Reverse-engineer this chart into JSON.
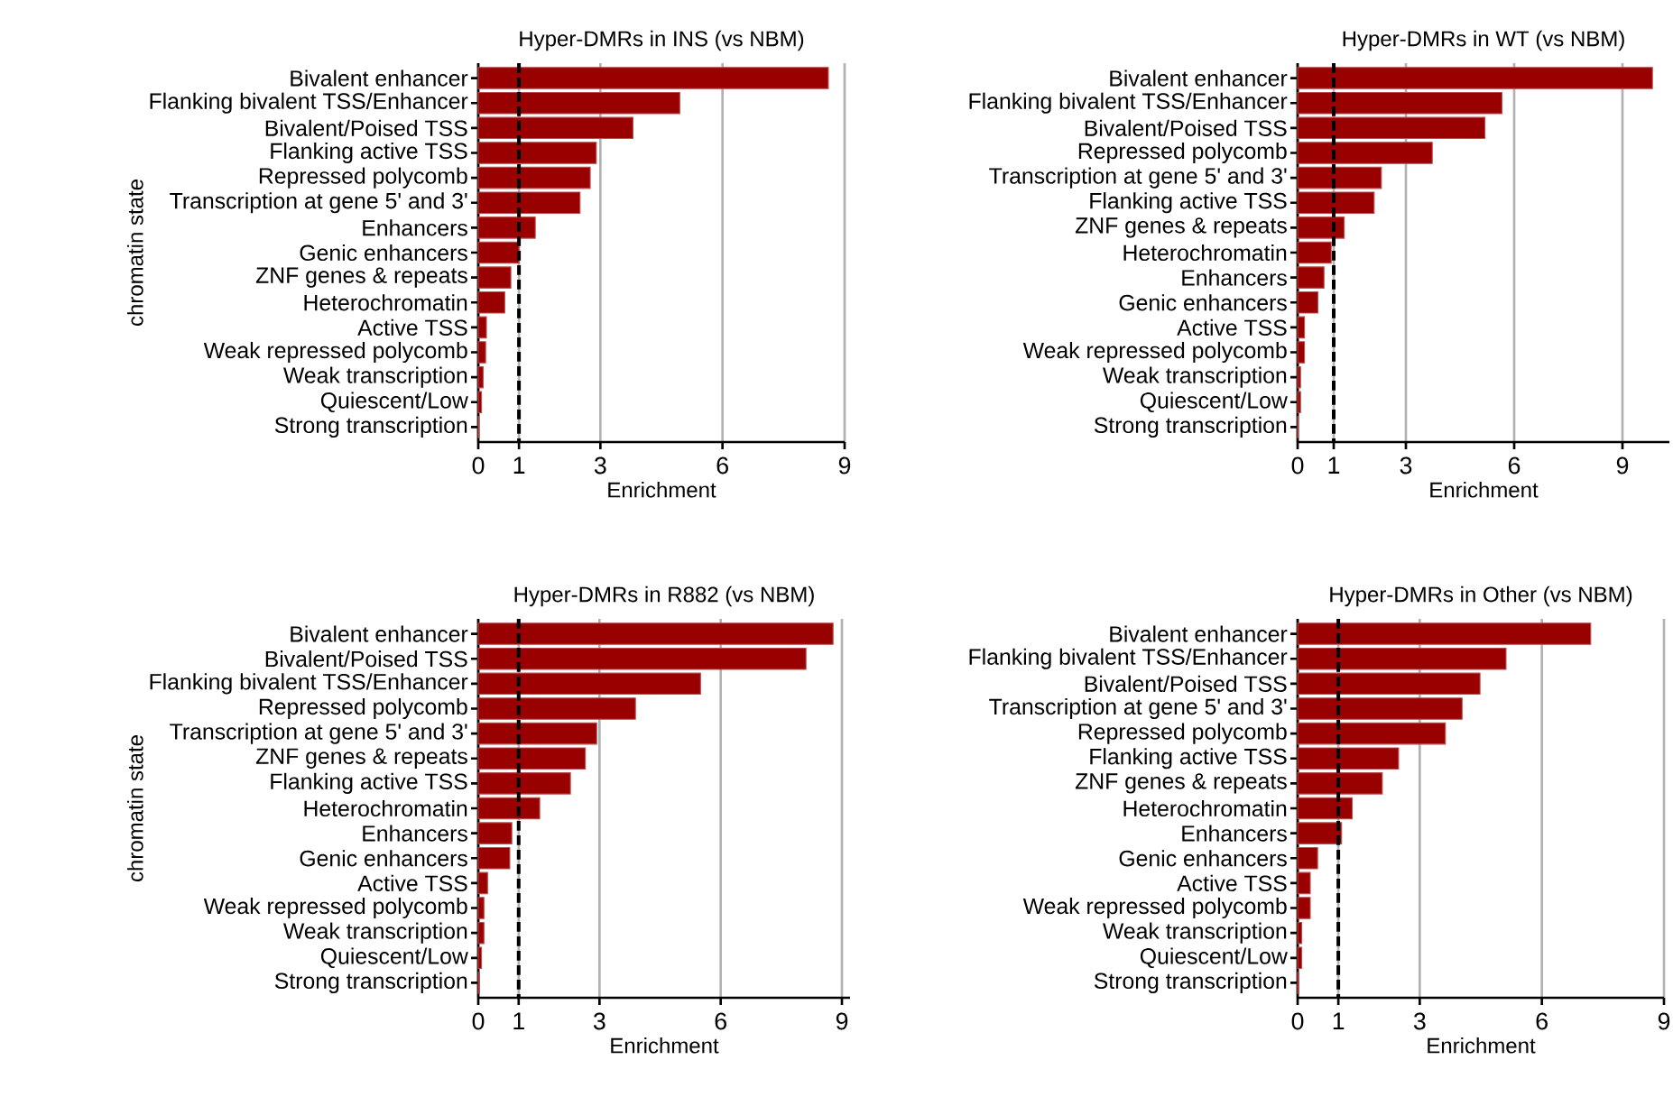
{
  "chart_data": [
    {
      "type": "bar",
      "orientation": "horizontal",
      "title": "Hyper-DMRs in INS (vs NBM)",
      "xlabel": "Enrichment",
      "ylabel": "chromatin state",
      "categories": [
        "Bivalent enhancer",
        "Flanking bivalent TSS/Enhancer",
        "Bivalent/Poised TSS",
        "Flanking active TSS",
        "Repressed polycomb",
        "Transcription at gene 5' and 3'",
        "Enhancers",
        "Genic enhancers",
        "ZNF genes & repeats",
        "Heterochromatin",
        "Active TSS",
        "Weak repressed polycomb",
        "Weak transcription",
        "Quiescent/Low",
        "Strong transcription"
      ],
      "values": [
        8.6,
        4.95,
        3.8,
        2.9,
        2.75,
        2.5,
        1.4,
        1.0,
        0.8,
        0.65,
        0.2,
        0.18,
        0.12,
        0.08,
        0.02
      ],
      "color": "#990000",
      "xlim": [
        0,
        9
      ],
      "xticks": [
        0,
        1,
        3,
        6,
        9
      ],
      "grid": "x",
      "ref_lines": [
        {
          "axis": "x",
          "value": 1,
          "color": "#000000",
          "line_style": "dashed"
        }
      ]
    },
    {
      "type": "bar",
      "orientation": "horizontal",
      "title": "Hyper-DMRs in WT (vs NBM)",
      "xlabel": "Enrichment",
      "categories": [
        "Bivalent enhancer",
        "Flanking bivalent TSS/Enhancer",
        "Bivalent/Poised TSS",
        "Repressed polycomb",
        "Transcription at gene 5' and 3'",
        "Flanking active TSS",
        "ZNF genes & repeats",
        "Heterochromatin",
        "Enhancers",
        "Genic enhancers",
        "Active TSS",
        "Weak repressed polycomb",
        "Weak transcription",
        "Quiescent/Low",
        "Strong transcription"
      ],
      "values": [
        9.83,
        5.66,
        5.19,
        3.73,
        2.32,
        2.12,
        1.29,
        0.93,
        0.73,
        0.56,
        0.19,
        0.19,
        0.08,
        0.08,
        0.02
      ],
      "color": "#990000",
      "xlim": [
        0,
        10.3
      ],
      "xticks": [
        0,
        1,
        3,
        6,
        9
      ],
      "grid": "x",
      "ref_lines": [
        {
          "axis": "x",
          "value": 1,
          "color": "#000000",
          "line_style": "dashed"
        }
      ]
    },
    {
      "type": "bar",
      "orientation": "horizontal",
      "title": "Hyper-DMRs in R882 (vs NBM)",
      "xlabel": "Enrichment",
      "ylabel": "chromatin state",
      "categories": [
        "Bivalent enhancer",
        "Bivalent/Poised TSS",
        "Flanking bivalent TSS/Enhancer",
        "Repressed polycomb",
        "Transcription at gene 5' and 3'",
        "ZNF genes & repeats",
        "Flanking active TSS",
        "Heterochromatin",
        "Enhancers",
        "Genic enhancers",
        "Active TSS",
        "Weak repressed polycomb",
        "Weak transcription",
        "Quiescent/Low",
        "Strong transcription"
      ],
      "values": [
        8.78,
        8.11,
        5.5,
        3.89,
        2.93,
        2.65,
        2.28,
        1.52,
        0.83,
        0.78,
        0.23,
        0.14,
        0.14,
        0.08,
        0.03
      ],
      "color": "#990000",
      "xlim": [
        0,
        9.2
      ],
      "xticks": [
        0,
        1,
        3,
        6,
        9
      ],
      "grid": "x",
      "ref_lines": [
        {
          "axis": "x",
          "value": 1,
          "color": "#000000",
          "line_style": "dashed"
        }
      ]
    },
    {
      "type": "bar",
      "orientation": "horizontal",
      "title": "Hyper-DMRs in Other (vs NBM)",
      "xlabel": "Enrichment",
      "categories": [
        "Bivalent enhancer",
        "Flanking bivalent TSS/Enhancer",
        "Bivalent/Poised TSS",
        "Transcription at gene 5' and 3'",
        "Repressed polycomb",
        "Flanking active TSS",
        "ZNF genes & repeats",
        "Heterochromatin",
        "Enhancers",
        "Genic enhancers",
        "Active TSS",
        "Weak repressed polycomb",
        "Weak transcription",
        "Quiescent/Low",
        "Strong transcription"
      ],
      "values": [
        7.2,
        5.12,
        4.48,
        4.04,
        3.63,
        2.48,
        2.08,
        1.34,
        1.08,
        0.49,
        0.31,
        0.31,
        0.1,
        0.1,
        0.03
      ],
      "color": "#990000",
      "xlim": [
        0,
        9
      ],
      "xticks": [
        0,
        1,
        3,
        6,
        9
      ],
      "grid": "x",
      "ref_lines": [
        {
          "axis": "x",
          "value": 1,
          "color": "#000000",
          "line_style": "dashed"
        }
      ]
    }
  ]
}
